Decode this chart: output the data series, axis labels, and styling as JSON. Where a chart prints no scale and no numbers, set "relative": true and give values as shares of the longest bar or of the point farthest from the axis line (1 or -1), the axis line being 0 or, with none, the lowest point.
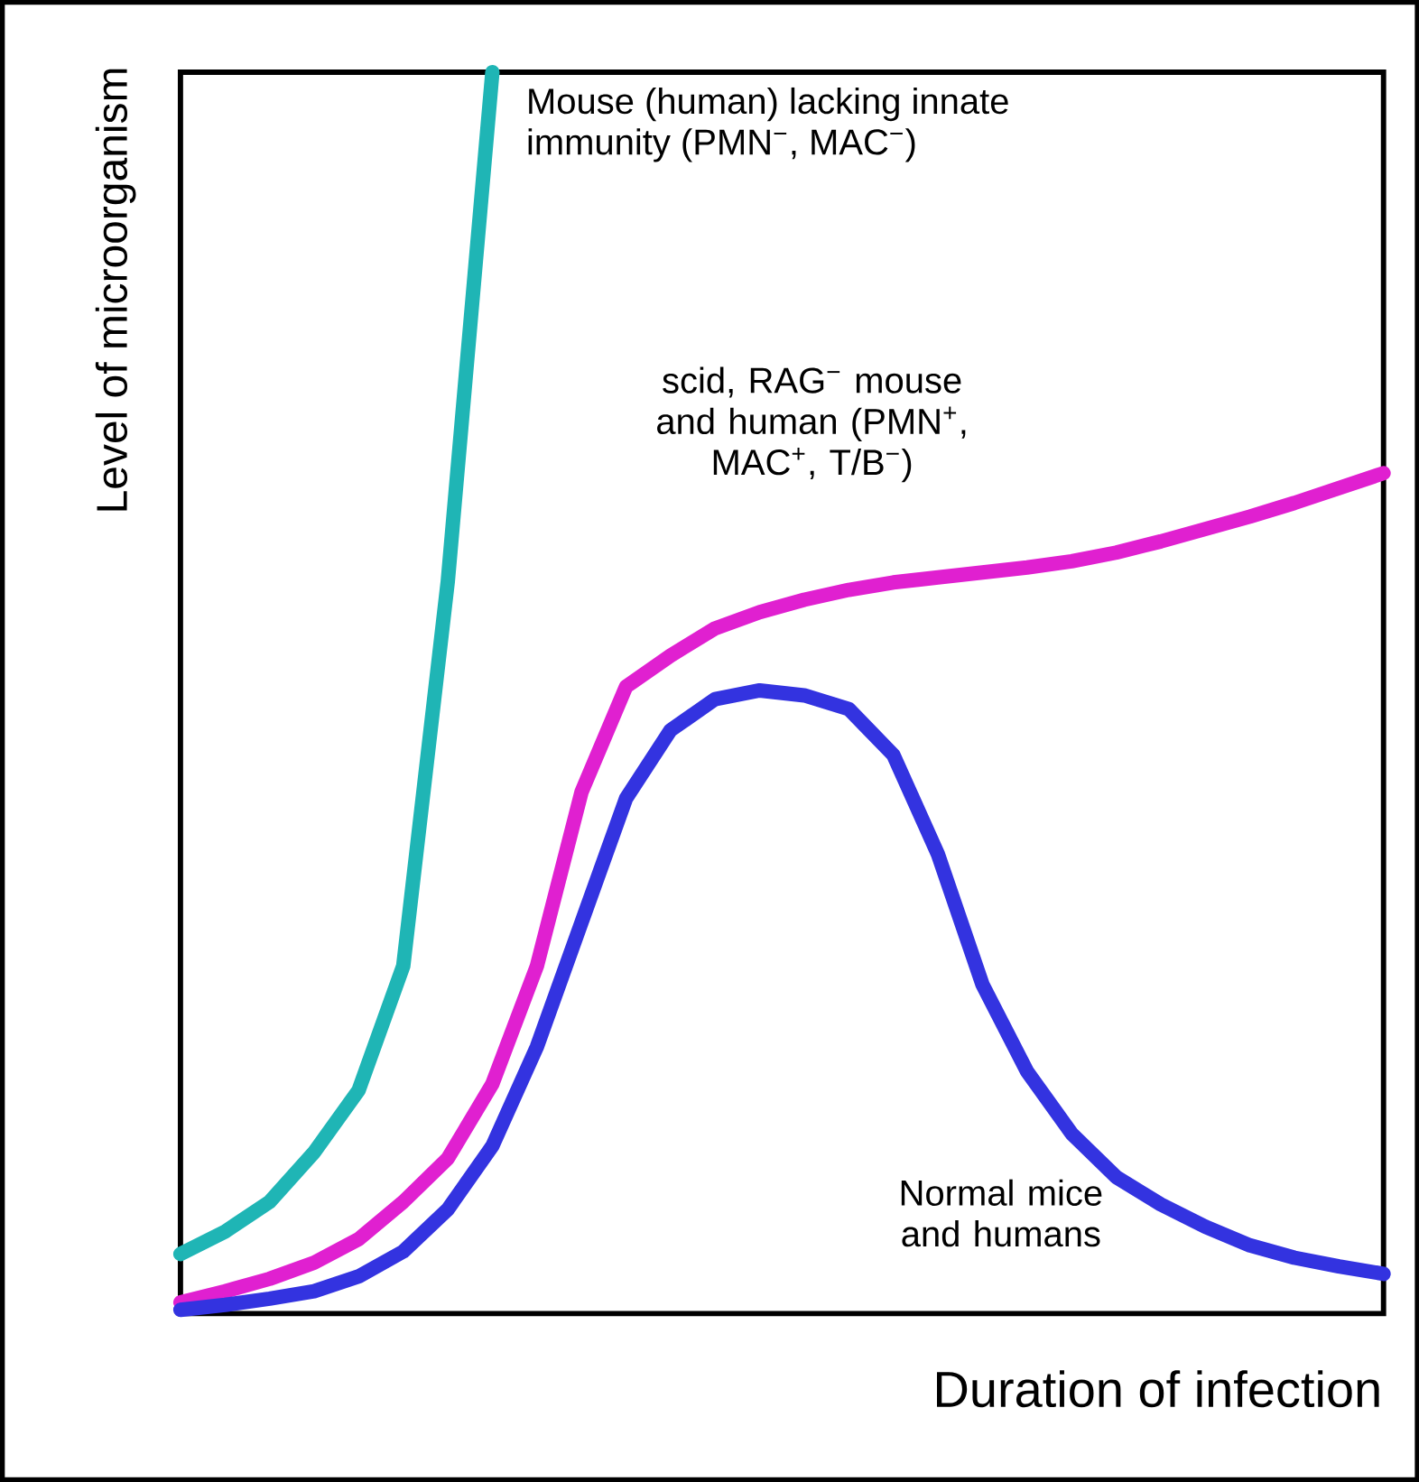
{
  "chart_data": {
    "type": "line",
    "relative": true,
    "xlabel": "Duration of infection",
    "ylabel": "Level of microorganism",
    "marker": "none",
    "line_style": "solid",
    "categories": [
      null,
      null,
      null,
      null,
      null,
      null,
      null,
      null,
      null,
      null,
      null,
      null,
      null,
      null,
      null,
      null,
      null,
      null,
      null,
      null,
      null,
      null,
      null,
      null,
      null,
      null,
      null,
      null
    ],
    "series": [
      {
        "name": "Mouse (human) lacking innate immunity (PMN$^{−}$, MAC$^{−}$)",
        "color": "#1fb5b5",
        "values": [
          0.048,
          0.066,
          0.09,
          0.13,
          0.18,
          0.28,
          0.59,
          1.0,
          null,
          null,
          null,
          null,
          null,
          null,
          null,
          null,
          null,
          null,
          null,
          null,
          null,
          null,
          null,
          null,
          null,
          null,
          null,
          null
        ]
      },
      {
        "name": "scid, RAG$^{−}$ mouse and human (PMN$^{+}$, MAC$^{+}$, T/B$^{−}$)",
        "color": "#e020d0",
        "values": [
          0.009,
          0.018,
          0.028,
          0.041,
          0.06,
          0.09,
          0.125,
          0.185,
          0.28,
          0.42,
          0.505,
          0.53,
          0.552,
          0.565,
          0.575,
          0.583,
          0.589,
          0.593,
          0.597,
          0.601,
          0.606,
          0.613,
          0.622,
          0.632,
          0.642,
          0.653,
          0.665,
          0.677
        ]
      },
      {
        "name": "Normal mice and humans",
        "color": "#3333e0",
        "values": [
          0.003,
          0.007,
          0.012,
          0.018,
          0.03,
          0.05,
          0.084,
          0.135,
          0.215,
          0.315,
          0.415,
          0.47,
          0.495,
          0.502,
          0.498,
          0.487,
          0.45,
          0.37,
          0.265,
          0.195,
          0.145,
          0.11,
          0.088,
          0.07,
          0.055,
          0.045,
          0.038,
          0.032
        ]
      }
    ]
  }
}
